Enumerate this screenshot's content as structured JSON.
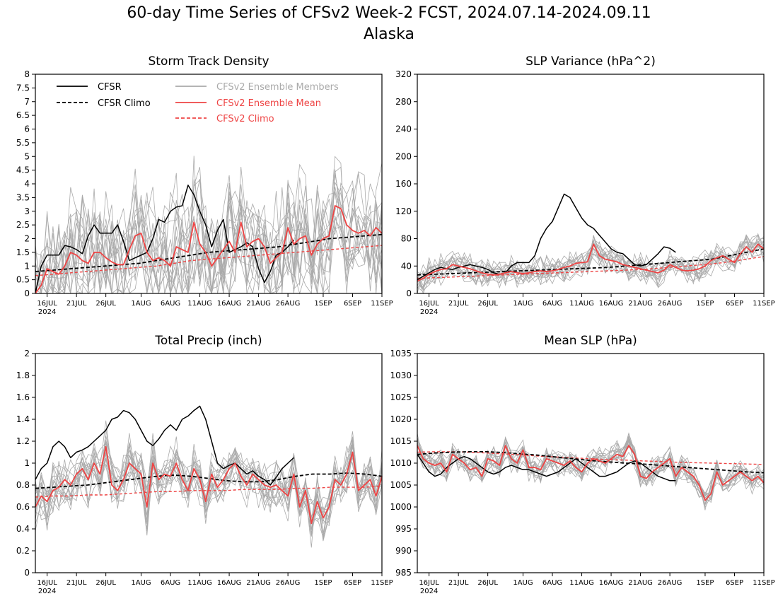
{
  "page": {
    "title": "60-day Time Series of CFSv2 Week-2 FCST, 2024.07.14-2024.09.11",
    "subtitle": "Alaska"
  },
  "legend": {
    "cfsr": "CFSR",
    "cfsr_climo": "CFSR Climo",
    "members": "CFSv2 Ensemble Members",
    "ens_mean": "CFSv2 Ensemble Mean",
    "cfsv2_climo": "CFSv2 Climo"
  },
  "colors": {
    "cfsr": "#000000",
    "members": "#aaaaaa",
    "ens_mean": "#ee4444",
    "cfsv2_climo": "#ee4444"
  },
  "x_ticks": [
    "16JUL",
    "21JUL",
    "26JUL",
    "1AUG",
    "6AUG",
    "11AUG",
    "16AUG",
    "21AUG",
    "26AUG",
    "1SEP",
    "6SEP",
    "11SEP"
  ],
  "x_year": "2024",
  "chart_data": [
    {
      "type": "line",
      "title": "Storm Track Density",
      "x_start": "2024-07-14",
      "x_end": "2024-09-11",
      "ylim": [
        0,
        8
      ],
      "yticks": [
        0,
        0.5,
        1,
        1.5,
        2,
        2.5,
        3,
        3.5,
        4,
        4.5,
        5,
        5.5,
        6,
        6.5,
        7,
        7.5,
        8
      ],
      "ytick_labels": [
        "0",
        "0.5",
        "1",
        "1.5",
        "2",
        "2.5",
        "3",
        "3.5",
        "4",
        "4.5",
        "5",
        "5.5",
        "6",
        "6.5",
        "7",
        "7.5",
        "8"
      ],
      "legend_position": "top-left",
      "series": [
        {
          "name": "CFSR",
          "values": [
            0,
            1.0,
            1.4,
            1.4,
            1.4,
            1.75,
            1.7,
            1.6,
            1.45,
            2.1,
            2.5,
            2.2,
            2.2,
            2.2,
            2.5,
            1.9,
            1.2,
            1.3,
            1.4,
            1.5,
            2.0,
            2.7,
            2.6,
            3.0,
            3.15,
            3.2,
            3.95,
            3.6,
            3.0,
            2.5,
            1.7,
            2.3,
            2.7,
            1.5,
            1.6,
            1.7,
            1.85,
            1.7,
            0.9,
            0.4,
            0.8,
            1.4,
            1.5,
            1.7,
            1.95
          ]
        },
        {
          "name": "CFSR Climo",
          "values": [
            0.8,
            0.85,
            0.9,
            0.95,
            1.0,
            1.05,
            1.1,
            1.2,
            1.3,
            1.4,
            1.5,
            1.55,
            1.6,
            1.65,
            1.7,
            1.8,
            1.9,
            2.0,
            2.05,
            2.1,
            2.15
          ]
        },
        {
          "name": "CFSv2 Ensemble Mean",
          "values": [
            0,
            0.3,
            0.9,
            0.8,
            0.7,
            1.0,
            1.5,
            1.4,
            1.2,
            1.1,
            1.5,
            1.5,
            1.3,
            1.15,
            1.05,
            1.05,
            1.6,
            2.1,
            2.2,
            1.5,
            1.2,
            1.3,
            1.2,
            1.0,
            1.7,
            1.6,
            1.5,
            2.6,
            1.8,
            1.5,
            1.0,
            1.3,
            1.6,
            1.9,
            1.5,
            2.6,
            1.7,
            1.9,
            2.0,
            1.7,
            1.1,
            1.3,
            1.5,
            2.4,
            1.8,
            2.0,
            2.1,
            1.4,
            1.8,
            2.0,
            2.1,
            3.2,
            3.1,
            2.5,
            2.3,
            2.2,
            2.3,
            2.1,
            2.4,
            2.2
          ]
        },
        {
          "name": "CFSv2 Climo",
          "values": [
            0.65,
            0.7,
            0.75,
            0.8,
            0.85,
            0.9,
            0.95,
            1.0,
            1.1,
            1.2,
            1.25,
            1.3,
            1.35,
            1.4,
            1.45,
            1.5,
            1.55,
            1.6,
            1.65,
            1.7,
            1.75
          ]
        }
      ]
    },
    {
      "type": "line",
      "title": "SLP Variance (hPa^2)",
      "x_start": "2024-07-14",
      "x_end": "2024-09-11",
      "ylim": [
        0,
        320
      ],
      "yticks": [
        0,
        40,
        80,
        120,
        160,
        200,
        240,
        280,
        320
      ],
      "ytick_labels": [
        "0",
        "40",
        "80",
        "120",
        "160",
        "200",
        "240",
        "280",
        "320"
      ],
      "series": [
        {
          "name": "CFSR",
          "values": [
            20,
            25,
            30,
            35,
            38,
            36,
            35,
            38,
            40,
            42,
            40,
            38,
            35,
            30,
            28,
            30,
            40,
            45,
            45,
            45,
            55,
            80,
            95,
            105,
            125,
            145,
            140,
            125,
            110,
            100,
            95,
            85,
            75,
            65,
            60,
            58,
            50,
            42,
            40,
            42,
            50,
            58,
            68,
            66,
            60
          ]
        },
        {
          "name": "CFSR Climo",
          "values": [
            27,
            28,
            29,
            30,
            31,
            32,
            33,
            34,
            35,
            36,
            37,
            38,
            40,
            42,
            44,
            46,
            48,
            50,
            55,
            60,
            65
          ]
        },
        {
          "name": "CFSv2 Ensemble Mean",
          "values": [
            18,
            22,
            28,
            32,
            35,
            36,
            42,
            40,
            38,
            36,
            33,
            30,
            28,
            27,
            28,
            30,
            32,
            30,
            29,
            30,
            32,
            33,
            32,
            33,
            35,
            38,
            40,
            44,
            45,
            46,
            72,
            55,
            50,
            48,
            46,
            42,
            40,
            38,
            36,
            34,
            32,
            30,
            34,
            42,
            38,
            34,
            33,
            34,
            36,
            40,
            48,
            52,
            55,
            50,
            45,
            58,
            68,
            60,
            72,
            65
          ]
        },
        {
          "name": "CFSv2 Climo",
          "values": [
            22,
            23,
            24,
            25,
            26,
            27,
            28,
            29,
            30,
            31,
            32,
            33,
            34,
            35,
            37,
            39,
            41,
            43,
            46,
            50,
            54
          ]
        }
      ]
    },
    {
      "type": "line",
      "title": "Total Precip (inch)",
      "x_start": "2024-07-14",
      "x_end": "2024-09-11",
      "ylim": [
        0,
        2
      ],
      "yticks": [
        0,
        0.2,
        0.4,
        0.6,
        0.8,
        1,
        1.2,
        1.4,
        1.6,
        1.8,
        2
      ],
      "ytick_labels": [
        "0",
        "0.2",
        "0.4",
        "0.6",
        "0.8",
        "1",
        "1.2",
        "1.4",
        "1.6",
        "1.8",
        "2"
      ],
      "series": [
        {
          "name": "CFSR",
          "values": [
            0.85,
            0.95,
            1.0,
            1.15,
            1.2,
            1.15,
            1.05,
            1.1,
            1.12,
            1.15,
            1.2,
            1.25,
            1.3,
            1.4,
            1.42,
            1.48,
            1.46,
            1.4,
            1.3,
            1.2,
            1.16,
            1.22,
            1.3,
            1.35,
            1.3,
            1.4,
            1.43,
            1.48,
            1.52,
            1.4,
            1.2,
            1.0,
            0.95,
            0.98,
            1.0,
            0.95,
            0.9,
            0.93,
            0.88,
            0.85,
            0.8,
            0.87,
            0.95,
            1.0,
            1.05
          ]
        },
        {
          "name": "CFSR Climo",
          "values": [
            0.77,
            0.78,
            0.79,
            0.8,
            0.82,
            0.84,
            0.86,
            0.88,
            0.89,
            0.88,
            0.86,
            0.84,
            0.83,
            0.83,
            0.85,
            0.88,
            0.9,
            0.9,
            0.91,
            0.9,
            0.88
          ]
        },
        {
          "name": "CFSv2 Ensemble Mean",
          "values": [
            0.6,
            0.7,
            0.65,
            0.75,
            0.78,
            0.85,
            0.8,
            0.9,
            0.95,
            0.85,
            1.0,
            0.9,
            1.15,
            0.8,
            0.75,
            0.85,
            1.0,
            0.95,
            0.9,
            0.6,
            1.0,
            0.85,
            0.9,
            0.88,
            1.0,
            0.85,
            0.75,
            0.95,
            0.85,
            0.65,
            0.9,
            0.78,
            0.85,
            0.95,
            1.0,
            0.88,
            0.8,
            0.9,
            0.85,
            0.8,
            0.78,
            0.8,
            0.75,
            0.7,
            0.9,
            0.6,
            0.75,
            0.45,
            0.65,
            0.5,
            0.6,
            0.85,
            0.8,
            0.9,
            1.1,
            0.75,
            0.8,
            0.85,
            0.7,
            0.88
          ]
        },
        {
          "name": "CFSv2 Climo",
          "values": [
            0.69,
            0.7,
            0.7,
            0.71,
            0.71,
            0.72,
            0.73,
            0.74,
            0.74,
            0.75,
            0.75,
            0.75,
            0.76,
            0.76,
            0.76,
            0.77,
            0.77,
            0.78,
            0.78,
            0.78,
            0.79
          ]
        }
      ]
    },
    {
      "type": "line",
      "title": "Mean SLP (hPa)",
      "x_start": "2024-07-14",
      "x_end": "2024-09-11",
      "ylim": [
        985,
        1035
      ],
      "yticks": [
        985,
        990,
        995,
        1000,
        1005,
        1010,
        1015,
        1020,
        1025,
        1030,
        1035
      ],
      "ytick_labels": [
        "985",
        "990",
        "995",
        "1000",
        "1005",
        "1010",
        "1015",
        "1020",
        "1025",
        "1030",
        "1035"
      ],
      "series": [
        {
          "name": "CFSR",
          "values": [
            1012,
            1010,
            1008,
            1007,
            1007.5,
            1009,
            1010,
            1011,
            1011.5,
            1011,
            1010,
            1009,
            1008,
            1007.5,
            1008,
            1009,
            1009.5,
            1009,
            1008.5,
            1008.5,
            1008,
            1007.5,
            1007,
            1007.5,
            1008,
            1009,
            1010,
            1011,
            1010,
            1009,
            1008,
            1007,
            1007,
            1007.5,
            1008,
            1009,
            1010,
            1010.5,
            1010,
            1009,
            1008,
            1007,
            1006.5,
            1006,
            1006
          ]
        },
        {
          "name": "CFSR Climo",
          "values": [
            1012,
            1012.3,
            1012.5,
            1012.6,
            1012.6,
            1012.4,
            1012.1,
            1011.8,
            1011.4,
            1011,
            1010.6,
            1010.3,
            1010,
            1009.8,
            1009.5,
            1009.2,
            1008.9,
            1008.6,
            1008.3,
            1008,
            1007.8
          ]
        },
        {
          "name": "CFSv2 Ensemble Mean",
          "values": [
            1014,
            1011,
            1010,
            1009.5,
            1010,
            1008,
            1012,
            1011,
            1010,
            1008.5,
            1009,
            1007,
            1011,
            1010.5,
            1009.5,
            1014,
            1011,
            1010,
            1013,
            1009,
            1009,
            1008.5,
            1011,
            1010.5,
            1010,
            1009.5,
            1010.5,
            1009,
            1008,
            1010,
            1011,
            1010.5,
            1010,
            1011,
            1012,
            1011.5,
            1014,
            1012,
            1007,
            1006.5,
            1008,
            1009,
            1010,
            1011,
            1007,
            1009,
            1008,
            1007,
            1005,
            1001.5,
            1003,
            1008,
            1005,
            1006,
            1007,
            1008,
            1007,
            1006,
            1007,
            1005.5
          ]
        },
        {
          "name": "CFSv2 Climo",
          "values": [
            1012.5,
            1012.6,
            1012.6,
            1012.5,
            1012.3,
            1012.1,
            1011.9,
            1011.6,
            1011.4,
            1011.2,
            1011,
            1010.8,
            1010.7,
            1010.5,
            1010.4,
            1010.2,
            1010.1,
            1010,
            1009.9,
            1009.8,
            1009.7
          ]
        }
      ]
    }
  ]
}
